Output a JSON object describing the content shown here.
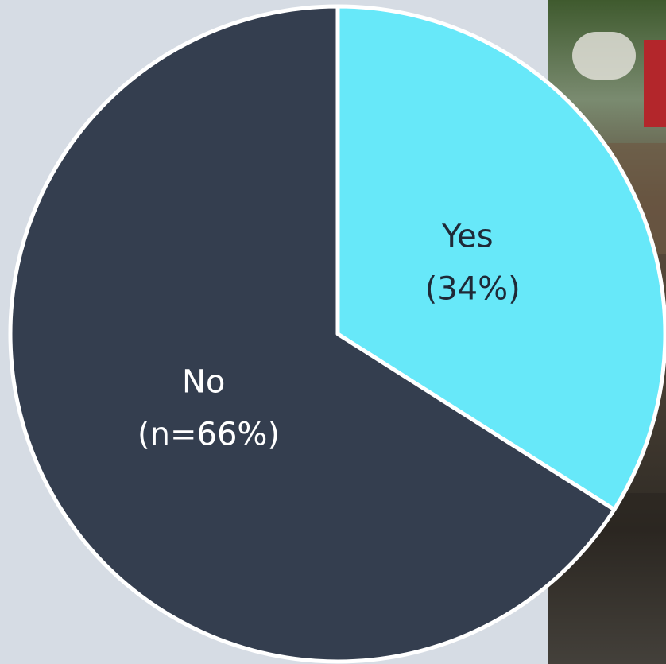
{
  "chart_data": {
    "type": "pie",
    "categories": [
      "Yes",
      "No"
    ],
    "values": [
      34,
      66
    ],
    "slice_labels": [
      {
        "line1": "Yes",
        "line2": "(34%)"
      },
      {
        "line1": "No",
        "line2": "(n=66%)"
      }
    ],
    "colors": [
      "#67e8f9",
      "#343e4f"
    ],
    "text_colors": [
      "#1f2937",
      "#ffffff"
    ],
    "title": "",
    "legend": "none"
  },
  "theme": {
    "background": "#d6dce4",
    "slice_border": "#ffffff"
  }
}
